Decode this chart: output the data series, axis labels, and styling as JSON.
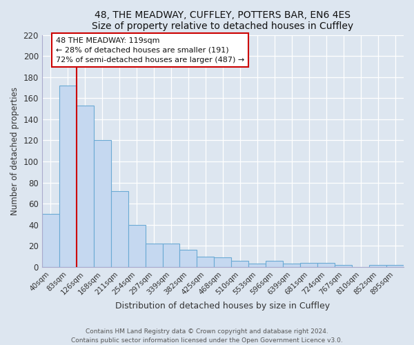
{
  "title": "48, THE MEADWAY, CUFFLEY, POTTERS BAR, EN6 4ES",
  "subtitle": "Size of property relative to detached houses in Cuffley",
  "xlabel": "Distribution of detached houses by size in Cuffley",
  "ylabel": "Number of detached properties",
  "categories": [
    "40sqm",
    "83sqm",
    "126sqm",
    "168sqm",
    "211sqm",
    "254sqm",
    "297sqm",
    "339sqm",
    "382sqm",
    "425sqm",
    "468sqm",
    "510sqm",
    "553sqm",
    "596sqm",
    "639sqm",
    "681sqm",
    "724sqm",
    "767sqm",
    "810sqm",
    "852sqm",
    "895sqm"
  ],
  "values": [
    50,
    172,
    153,
    120,
    72,
    40,
    22,
    22,
    16,
    10,
    9,
    6,
    3,
    6,
    3,
    4,
    4,
    2,
    0,
    2,
    2
  ],
  "bar_color": "#c5d8f0",
  "bar_edge_color": "#6aaad4",
  "red_line_index": 2,
  "annotation_title": "48 THE MEADWAY: 119sqm",
  "annotation_line1": "← 28% of detached houses are smaller (191)",
  "annotation_line2": "72% of semi-detached houses are larger (487) →",
  "box_facecolor": "#ffffff",
  "box_edgecolor": "#cc0000",
  "red_line_color": "#cc0000",
  "ylim": [
    0,
    220
  ],
  "yticks": [
    0,
    20,
    40,
    60,
    80,
    100,
    120,
    140,
    160,
    180,
    200,
    220
  ],
  "footer1": "Contains HM Land Registry data © Crown copyright and database right 2024.",
  "footer2": "Contains public sector information licensed under the Open Government Licence v3.0.",
  "background_color": "#dde6f0",
  "plot_background": "#dde6f0",
  "grid_color": "#ffffff",
  "spine_color": "#aaaacc"
}
